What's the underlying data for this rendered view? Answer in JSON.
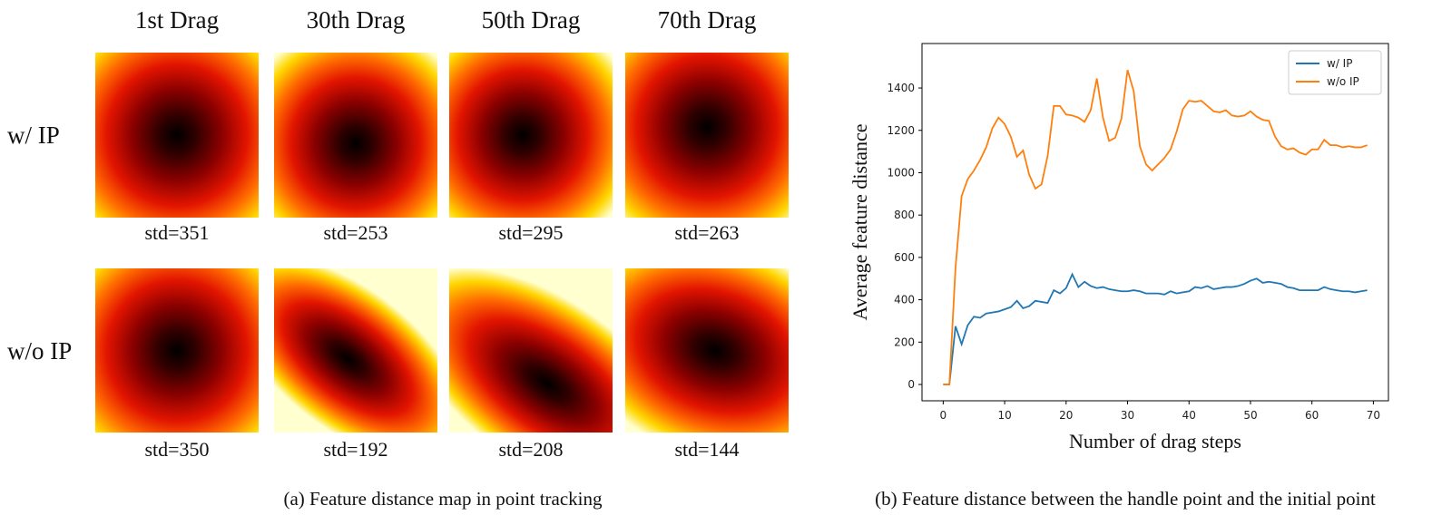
{
  "panel_a": {
    "columns": [
      "1st Drag",
      "30th Drag",
      "50th Drag",
      "70th Drag"
    ],
    "rows": [
      {
        "label": "w/ IP",
        "stds": [
          "std=351",
          "std=253",
          "std=295",
          "std=263"
        ]
      },
      {
        "label": "w/o IP",
        "stds": [
          "std=350",
          "std=192",
          "std=208",
          "std=144"
        ]
      }
    ],
    "caption": "(a) Feature distance map in point tracking"
  },
  "chart_data": {
    "type": "line",
    "caption": "(b) Feature distance between the handle point and the initial point",
    "x_label": "Number of drag steps",
    "y_label": "Average feature distance",
    "x": [
      0,
      1,
      2,
      3,
      4,
      5,
      6,
      7,
      8,
      9,
      10,
      11,
      12,
      13,
      14,
      15,
      16,
      17,
      18,
      19,
      20,
      21,
      22,
      23,
      24,
      25,
      26,
      27,
      28,
      29,
      30,
      31,
      32,
      33,
      34,
      35,
      36,
      37,
      38,
      39,
      40,
      41,
      42,
      43,
      44,
      45,
      46,
      47,
      48,
      49,
      50,
      51,
      52,
      53,
      54,
      55,
      56,
      57,
      58,
      59,
      60,
      61,
      62,
      63,
      64,
      65,
      66,
      67,
      68,
      69
    ],
    "series": [
      {
        "name": "w/ IP",
        "color": "#1f77b4",
        "values": [
          0,
          0,
          275,
          190,
          280,
          320,
          315,
          335,
          340,
          345,
          355,
          365,
          395,
          360,
          370,
          395,
          390,
          385,
          445,
          430,
          455,
          520,
          460,
          485,
          465,
          455,
          460,
          450,
          445,
          440,
          440,
          445,
          440,
          430,
          430,
          430,
          425,
          440,
          430,
          435,
          440,
          460,
          455,
          465,
          450,
          455,
          460,
          460,
          465,
          475,
          490,
          500,
          480,
          485,
          480,
          475,
          460,
          455,
          445,
          445,
          445,
          445,
          460,
          450,
          445,
          440,
          440,
          435,
          440,
          445
        ]
      },
      {
        "name": "w/o IP",
        "color": "#ff7f0e",
        "values": [
          0,
          0,
          550,
          890,
          970,
          1010,
          1060,
          1120,
          1210,
          1260,
          1230,
          1170,
          1075,
          1105,
          990,
          925,
          945,
          1080,
          1315,
          1315,
          1275,
          1270,
          1260,
          1240,
          1295,
          1445,
          1260,
          1150,
          1165,
          1255,
          1485,
          1385,
          1125,
          1040,
          1010,
          1040,
          1070,
          1110,
          1195,
          1300,
          1340,
          1335,
          1340,
          1315,
          1290,
          1285,
          1295,
          1270,
          1265,
          1270,
          1290,
          1265,
          1250,
          1245,
          1170,
          1125,
          1110,
          1115,
          1095,
          1085,
          1110,
          1110,
          1155,
          1130,
          1130,
          1120,
          1125,
          1120,
          1120,
          1130
        ]
      }
    ],
    "xlim": [
      -3.45,
      72.45
    ],
    "ylim": [
      -77,
      1610
    ],
    "xticks": [
      0,
      10,
      20,
      30,
      40,
      50,
      60,
      70
    ],
    "yticks": [
      0,
      200,
      400,
      600,
      800,
      1000,
      1200,
      1400
    ],
    "grid": false,
    "legend": "upper right"
  }
}
